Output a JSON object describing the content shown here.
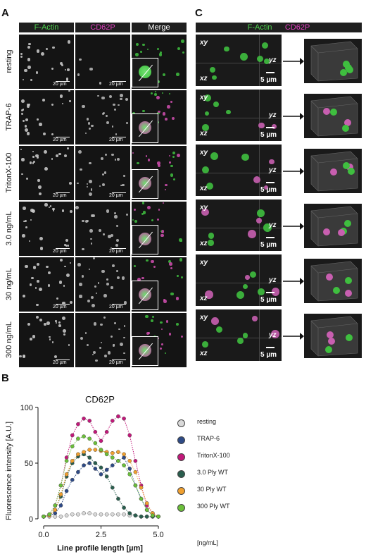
{
  "panelA": {
    "letter": "A",
    "headers": {
      "factin": "F-Actin",
      "cd62p": "CD62P",
      "merge": "Merge"
    },
    "rows": [
      "resting",
      "TRAP-6",
      "TritonX-100",
      "3.0 ng/mL",
      "30 ng/mL",
      "300 ng/mL"
    ],
    "scalebar": "20 µm"
  },
  "panelC": {
    "letter": "C",
    "header_factin": "F-Actin",
    "header_cd62p": "CD62P",
    "xy": "xy",
    "xz": "xz",
    "yz": "yz",
    "scalebar": "5 µm"
  },
  "panelB": {
    "letter": "B",
    "units_note": "[ng/mL]"
  },
  "chart_data": {
    "type": "line",
    "title": "CD62P",
    "xlabel": "Line profile length [µm]",
    "ylabel": "Fluorescence intensity [A.U.]",
    "xlim": [
      0,
      5
    ],
    "ylim": [
      0,
      100
    ],
    "xticks": [
      "0.0",
      "2.5",
      "5.0"
    ],
    "yticks": [
      "0",
      "50",
      "100"
    ],
    "x": [
      0,
      0.25,
      0.5,
      0.75,
      1.0,
      1.25,
      1.5,
      1.75,
      2.0,
      2.25,
      2.5,
      2.75,
      3.0,
      3.25,
      3.5,
      3.75,
      4.0,
      4.25,
      4.5,
      4.75,
      5.0
    ],
    "legend_position": "right",
    "series": [
      {
        "name": "resting",
        "color": "#d9d9d9",
        "values": [
          2,
          2,
          2,
          2,
          3,
          4,
          4,
          5,
          5,
          4,
          4,
          4,
          4,
          4,
          4,
          3,
          3,
          2,
          2,
          2,
          2
        ]
      },
      {
        "name": "TRAP-6",
        "color": "#2e4a86",
        "values": [
          2,
          3,
          5,
          12,
          25,
          35,
          42,
          48,
          50,
          45,
          40,
          44,
          48,
          52,
          55,
          45,
          30,
          18,
          8,
          3,
          2
        ]
      },
      {
        "name": "TritonX-100",
        "color": "#c2187a",
        "values": [
          2,
          4,
          12,
          30,
          55,
          75,
          85,
          90,
          88,
          78,
          70,
          78,
          88,
          92,
          90,
          75,
          52,
          30,
          12,
          5,
          2
        ]
      },
      {
        "name": "3.0 Ply WT",
        "color": "#2a5e4e",
        "values": [
          2,
          3,
          8,
          20,
          38,
          50,
          56,
          58,
          55,
          50,
          46,
          38,
          28,
          18,
          10,
          5,
          3,
          2,
          2,
          2,
          2
        ]
      },
      {
        "name": "30 Ply WT",
        "color": "#f0a030",
        "values": [
          2,
          3,
          8,
          22,
          40,
          52,
          58,
          60,
          62,
          62,
          61,
          60,
          59,
          60,
          58,
          52,
          42,
          28,
          14,
          5,
          2
        ]
      },
      {
        "name": "300 Ply WT",
        "color": "#6bbf3a",
        "values": [
          2,
          4,
          12,
          30,
          52,
          65,
          72,
          74,
          72,
          68,
          62,
          58,
          55,
          52,
          48,
          40,
          30,
          18,
          8,
          3,
          2
        ]
      }
    ]
  }
}
